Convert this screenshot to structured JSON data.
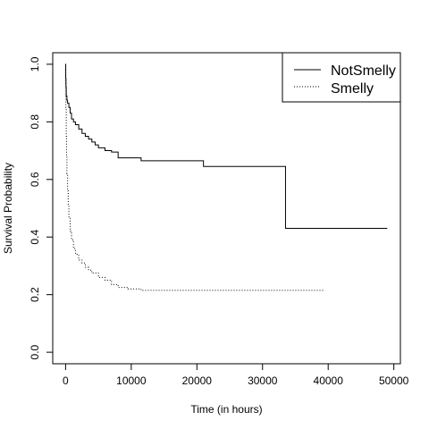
{
  "chart_data": {
    "type": "line",
    "title": "",
    "xlabel": "Time (in hours)",
    "ylabel": "Survival Probability",
    "xlim": [
      -1960,
      51000
    ],
    "ylim": [
      -0.04,
      1.04
    ],
    "x_ticks": [
      0,
      10000,
      20000,
      30000,
      40000,
      50000
    ],
    "y_ticks": [
      0.0,
      0.2,
      0.4,
      0.6,
      0.8,
      1.0
    ],
    "grid": false,
    "legend_position": "top-right",
    "legend": [
      "NotSmelly",
      "Smelly"
    ],
    "series": [
      {
        "name": "NotSmelly",
        "line_style": "solid",
        "step": true,
        "x": [
          0,
          20,
          60,
          100,
          200,
          300,
          500,
          700,
          900,
          1200,
          1500,
          2000,
          2500,
          3000,
          3500,
          4000,
          4500,
          5000,
          5500,
          6000,
          7000,
          8000,
          11500,
          21000,
          33500,
          49000
        ],
        "y": [
          1.0,
          0.95,
          0.92,
          0.89,
          0.875,
          0.865,
          0.85,
          0.83,
          0.81,
          0.8,
          0.79,
          0.775,
          0.76,
          0.75,
          0.74,
          0.73,
          0.72,
          0.71,
          0.71,
          0.7,
          0.695,
          0.675,
          0.665,
          0.645,
          0.43,
          0.43
        ]
      },
      {
        "name": "Smelly",
        "line_style": "dotted",
        "step": true,
        "x": [
          0,
          20,
          50,
          100,
          150,
          200,
          300,
          400,
          500,
          700,
          900,
          1200,
          1500,
          2000,
          2500,
          3000,
          3500,
          4000,
          5000,
          6000,
          7000,
          8000,
          9500,
          11500,
          39500
        ],
        "y": [
          1.0,
          0.93,
          0.85,
          0.75,
          0.68,
          0.62,
          0.56,
          0.51,
          0.47,
          0.42,
          0.39,
          0.36,
          0.34,
          0.32,
          0.31,
          0.295,
          0.285,
          0.275,
          0.26,
          0.25,
          0.235,
          0.225,
          0.22,
          0.215,
          0.215
        ]
      }
    ]
  }
}
